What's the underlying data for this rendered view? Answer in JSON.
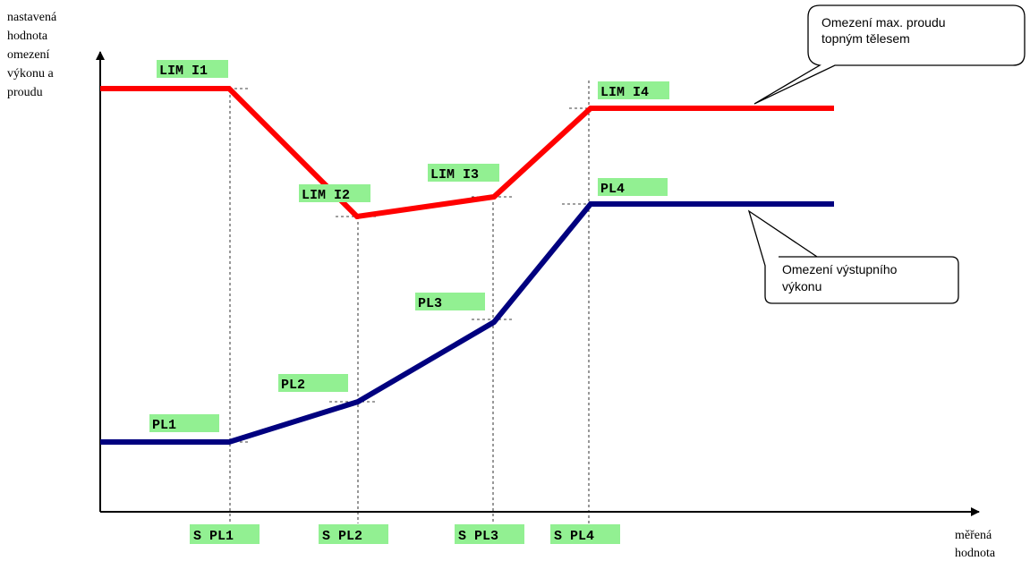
{
  "y_axis_label": [
    "nastavená",
    "hodnota",
    "omezení",
    "výkonu a",
    "proudu"
  ],
  "x_axis_label": [
    "měřená",
    "hodnota"
  ],
  "colors": {
    "current_line": "#ff0000",
    "power_line": "#00007f",
    "tag_fill": "#92f092",
    "axis": "#000000"
  },
  "current_tags": [
    "LIM I1",
    "LIM I2",
    "LIM I3",
    "LIM I4"
  ],
  "power_tags": [
    "PL1",
    "PL2",
    "PL3",
    "PL4"
  ],
  "x_tags": [
    "S PL1",
    "S PL2",
    "S PL3",
    "S PL4"
  ],
  "callouts": {
    "current": [
      "Omezení max. proudu",
      "topným tělesem"
    ],
    "power": [
      "Omezení výstupního",
      "výkonu"
    ]
  }
}
